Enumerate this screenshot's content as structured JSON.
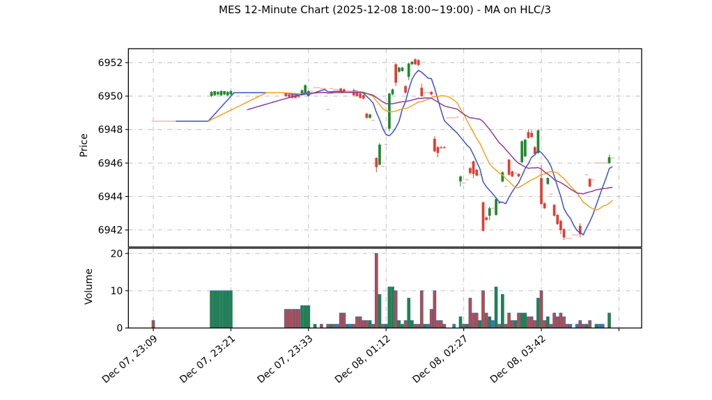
{
  "title": "MES 12-Minute Chart (2025-12-08 18:00~19:00) - MA on HLC/3",
  "price_panel": {
    "axis_label": "Price",
    "tick_labels": [
      6942,
      6944,
      6946,
      6948,
      6950,
      6952
    ],
    "ylim": [
      6941.0,
      6952.85
    ]
  },
  "volume_panel": {
    "axis_label": "Volume",
    "tick_labels": [
      0,
      10,
      20
    ],
    "ylim": [
      0,
      21.4
    ]
  },
  "x_axis": {
    "tick_labels": [
      "Dec 07, 23:09",
      "Dec 07, 23:21",
      "Dec 07, 23:33",
      "Dec 08, 01:12",
      "Dec 08, 02:27",
      "Dec 08, 03:42"
    ],
    "bars_per_gridline": 24,
    "n_gridlines": 7
  },
  "colors": {
    "up": "#1d8a2a",
    "down": "#e23d33",
    "flat": "#f6b2ae",
    "ma_fast": "#3b4fd0",
    "ma_mid": "#f9a11b",
    "ma_slow": "#913a92",
    "vol_up": "#1d8a2a",
    "vol_down": "#d64136",
    "vol_neutral": "#3f76b5",
    "vol_edge": "#2f6ca8",
    "grid": "#bbbbbb",
    "spine": "#000000",
    "background": "#ffffff"
  },
  "chart_data": {
    "type": "candlestick+volume",
    "title": "MES 12-Minute Chart (2025-12-08 18:00~19:00) - MA on HLC/3",
    "price_source": "MA on HLC/3",
    "moving_averages": [
      {
        "name": "MA-fast",
        "period": 8,
        "color": "#3b4fd0"
      },
      {
        "name": "MA-mid",
        "period": 18,
        "color": "#f9a11b"
      },
      {
        "name": "MA-slow",
        "period": 30,
        "color": "#913a92"
      }
    ],
    "ohlcv_format": [
      "open",
      "high",
      "low",
      "close",
      "volume"
    ],
    "ohlcv": [
      [
        6948.5,
        6948.5,
        6948.5,
        6948.5,
        2
      ],
      [
        6948.5,
        6948.5,
        6948.5,
        6948.5,
        0
      ],
      [
        6948.5,
        6948.5,
        6948.5,
        6948.5,
        0
      ],
      [
        6948.5,
        6948.5,
        6948.5,
        6948.5,
        0
      ],
      [
        6948.5,
        6948.5,
        6948.5,
        6948.5,
        0
      ],
      [
        6948.5,
        6948.5,
        6948.5,
        6948.5,
        0
      ],
      [
        6948.5,
        6948.5,
        6948.5,
        6948.5,
        0
      ],
      [
        6948.5,
        6948.5,
        6948.5,
        6948.5,
        0
      ],
      [
        6948.5,
        6948.5,
        6948.5,
        6948.5,
        0
      ],
      [
        6948.5,
        6948.5,
        6948.5,
        6948.5,
        0
      ],
      [
        6948.5,
        6948.5,
        6948.5,
        6948.5,
        0
      ],
      [
        6948.5,
        6948.5,
        6948.5,
        6948.5,
        0
      ],
      [
        6948.5,
        6948.5,
        6948.5,
        6948.5,
        0
      ],
      [
        6948.5,
        6948.5,
        6948.5,
        6948.5,
        0
      ],
      [
        6948.5,
        6948.5,
        6948.5,
        6948.5,
        0
      ],
      [
        6948.5,
        6948.5,
        6948.5,
        6948.5,
        0
      ],
      [
        6948.5,
        6948.5,
        6948.5,
        6948.5,
        0
      ],
      [
        6948.5,
        6948.5,
        6948.5,
        6948.5,
        0
      ],
      [
        6950.0,
        6950.3,
        6949.95,
        6950.25,
        10
      ],
      [
        6950.05,
        6950.3,
        6950.0,
        6950.3,
        10
      ],
      [
        6950.1,
        6950.3,
        6950.05,
        6950.25,
        10
      ],
      [
        6950.05,
        6950.35,
        6950.0,
        6950.3,
        10
      ],
      [
        6950.1,
        6950.3,
        6950.05,
        6950.3,
        10
      ],
      [
        6950.05,
        6950.3,
        6950.0,
        6950.25,
        10
      ],
      [
        6950.1,
        6950.35,
        6950.05,
        6950.3,
        10
      ],
      [
        6950.2,
        6950.2,
        6950.2,
        6950.2,
        0
      ],
      [
        6950.2,
        6950.2,
        6950.2,
        6950.2,
        0
      ],
      [
        6950.2,
        6950.2,
        6950.2,
        6950.2,
        0
      ],
      [
        6950.2,
        6950.2,
        6950.2,
        6950.2,
        0
      ],
      [
        6950.2,
        6950.2,
        6950.2,
        6950.2,
        0
      ],
      [
        6950.2,
        6950.2,
        6950.2,
        6950.2,
        0
      ],
      [
        6950.2,
        6950.2,
        6950.2,
        6950.2,
        0
      ],
      [
        6950.2,
        6950.2,
        6950.2,
        6950.2,
        0
      ],
      [
        6950.2,
        6950.2,
        6950.2,
        6950.2,
        0
      ],
      [
        6950.2,
        6950.2,
        6950.2,
        6950.2,
        0
      ],
      [
        6950.2,
        6950.2,
        6950.2,
        6950.2,
        0
      ],
      [
        6950.2,
        6950.2,
        6950.2,
        6950.2,
        0
      ],
      [
        6950.2,
        6950.2,
        6950.2,
        6950.2,
        0
      ],
      [
        6950.2,
        6950.2,
        6950.2,
        6950.2,
        0
      ],
      [
        6950.2,
        6950.2,
        6950.2,
        6950.2,
        0
      ],
      [
        6950.2,
        6950.2,
        6950.2,
        6950.2,
        0
      ],
      [
        6950.15,
        6950.2,
        6949.95,
        6950.0,
        5
      ],
      [
        6950.1,
        6950.15,
        6949.9,
        6949.95,
        5
      ],
      [
        6950.1,
        6950.15,
        6949.85,
        6949.9,
        5
      ],
      [
        6950.05,
        6950.1,
        6949.85,
        6949.9,
        5
      ],
      [
        6950.0,
        6950.1,
        6949.9,
        6949.95,
        5
      ],
      [
        6950.1,
        6950.4,
        6950.05,
        6950.35,
        6
      ],
      [
        6950.2,
        6950.7,
        6950.15,
        6950.65,
        6
      ],
      [
        6950.0,
        6950.35,
        6949.95,
        6950.3,
        6
      ],
      [
        6950.3,
        6950.3,
        6950.3,
        6950.3,
        0
      ],
      [
        6950.5,
        6950.5,
        6950.5,
        6950.5,
        1
      ],
      [
        6950.5,
        6950.5,
        6950.5,
        6950.5,
        0
      ],
      [
        6950.45,
        6950.45,
        6950.45,
        6950.45,
        1
      ],
      [
        6950.45,
        6950.45,
        6950.45,
        6950.45,
        0
      ],
      [
        6949.2,
        6949.2,
        6949.2,
        6949.2,
        1
      ],
      [
        6950.45,
        6950.45,
        6950.45,
        6950.45,
        1
      ],
      [
        6950.4,
        6950.4,
        6950.4,
        6950.4,
        1
      ],
      [
        6950.4,
        6950.4,
        6950.4,
        6950.4,
        1
      ],
      [
        6950.45,
        6950.5,
        6950.25,
        6950.3,
        4
      ],
      [
        6950.4,
        6950.45,
        6950.2,
        6950.25,
        4
      ],
      [
        6950.3,
        6950.3,
        6950.3,
        6950.3,
        1
      ],
      [
        6950.3,
        6950.3,
        6950.3,
        6950.3,
        1
      ],
      [
        6950.3,
        6950.45,
        6950.0,
        6950.05,
        1
      ],
      [
        6950.25,
        6950.35,
        6949.95,
        6950.0,
        3
      ],
      [
        6950.15,
        6950.2,
        6949.85,
        6949.9,
        3
      ],
      [
        6950.05,
        6950.1,
        6949.8,
        6949.85,
        2
      ],
      [
        6948.95,
        6949.0,
        6948.65,
        6948.7,
        2
      ],
      [
        6948.7,
        6948.95,
        6948.65,
        6948.9,
        2
      ],
      [
        6948.55,
        6948.55,
        6948.55,
        6948.55,
        1
      ],
      [
        6946.3,
        6946.35,
        6945.45,
        6945.75,
        20
      ],
      [
        6945.9,
        6947.2,
        6945.85,
        6947.1,
        9
      ],
      [
        6945.8,
        6945.8,
        6945.8,
        6945.8,
        1
      ],
      [
        6947.1,
        6947.1,
        6947.1,
        6947.1,
        1
      ],
      [
        6948.05,
        6950.2,
        6947.9,
        6950.15,
        11
      ],
      [
        6950.1,
        6950.45,
        6950.05,
        6950.4,
        11
      ],
      [
        6951.9,
        6951.95,
        6950.6,
        6950.8,
        10
      ],
      [
        6951.45,
        6951.75,
        6951.4,
        6951.7,
        2
      ],
      [
        6951.5,
        6951.75,
        6951.45,
        6951.7,
        1
      ],
      [
        6950.6,
        6950.65,
        6950.15,
        6950.2,
        2
      ],
      [
        6951.15,
        6952.0,
        6950.95,
        6951.95,
        8
      ],
      [
        6951.9,
        6952.1,
        6951.85,
        6952.05,
        2
      ],
      [
        6952.2,
        6952.25,
        6951.85,
        6951.9,
        1
      ],
      [
        6952.15,
        6952.2,
        6951.8,
        6951.85,
        1
      ],
      [
        6950.5,
        6950.75,
        6949.95,
        6950.0,
        10
      ],
      [
        6950.2,
        6950.2,
        6950.2,
        6950.2,
        1
      ],
      [
        6950.2,
        6950.2,
        6950.2,
        6950.2,
        1
      ],
      [
        6950.25,
        6950.3,
        6950.05,
        6950.1,
        5
      ],
      [
        6947.45,
        6947.6,
        6946.65,
        6946.7,
        10
      ],
      [
        6946.95,
        6947.0,
        6946.35,
        6946.6,
        2
      ],
      [
        6946.95,
        6947.0,
        6946.85,
        6946.9,
        2
      ],
      [
        6946.95,
        6947.0,
        6946.85,
        6946.9,
        1
      ],
      [
        6948.7,
        6948.7,
        6948.7,
        6948.7,
        0
      ],
      [
        6948.7,
        6948.7,
        6948.7,
        6948.7,
        0
      ],
      [
        6948.7,
        6948.7,
        6948.7,
        6948.7,
        1
      ],
      [
        6948.75,
        6948.75,
        6948.75,
        6948.75,
        0
      ],
      [
        6944.9,
        6945.25,
        6944.6,
        6945.2,
        3
      ],
      [
        6944.8,
        6944.8,
        6944.8,
        6944.8,
        1
      ],
      [
        6945.0,
        6945.0,
        6945.0,
        6945.0,
        1
      ],
      [
        6945.7,
        6945.75,
        6945.3,
        6945.4,
        8
      ],
      [
        6946.1,
        6946.15,
        6945.1,
        6945.35,
        4
      ],
      [
        6945.6,
        6945.65,
        6945.2,
        6945.25,
        4
      ],
      [
        6945.3,
        6945.3,
        6945.3,
        6945.3,
        2
      ],
      [
        6943.65,
        6943.7,
        6941.9,
        6941.95,
        10
      ],
      [
        6942.75,
        6942.8,
        6942.55,
        6942.6,
        4
      ],
      [
        6942.85,
        6943.4,
        6942.6,
        6943.3,
        3
      ],
      [
        6943.3,
        6943.3,
        6943.3,
        6943.3,
        2
      ],
      [
        6942.9,
        6943.9,
        6942.85,
        6943.85,
        11
      ],
      [
        6943.65,
        6943.7,
        6943.55,
        6943.6,
        1
      ],
      [
        6944.9,
        6945.5,
        6944.85,
        6945.45,
        9
      ],
      [
        6944.6,
        6944.6,
        6944.6,
        6944.6,
        1
      ],
      [
        6946.2,
        6946.25,
        6945.25,
        6945.3,
        4
      ],
      [
        6945.5,
        6945.55,
        6945.15,
        6945.2,
        2
      ],
      [
        6945.4,
        6945.4,
        6945.4,
        6945.4,
        2
      ],
      [
        6945.35,
        6945.4,
        6945.15,
        6945.2,
        4
      ],
      [
        6946.05,
        6947.35,
        6946.0,
        6947.3,
        4
      ],
      [
        6946.4,
        6947.45,
        6946.35,
        6947.4,
        4
      ],
      [
        6947.85,
        6948.0,
        6947.45,
        6947.5,
        3
      ],
      [
        6947.8,
        6947.95,
        6947.5,
        6947.55,
        3
      ],
      [
        6946.95,
        6947.0,
        6946.5,
        6946.55,
        2
      ],
      [
        6946.6,
        6948.0,
        6946.55,
        6947.95,
        8
      ],
      [
        6945.1,
        6945.9,
        6943.5,
        6943.55,
        10
      ],
      [
        6943.6,
        6943.65,
        6943.25,
        6943.3,
        2
      ],
      [
        6944.75,
        6945.15,
        6944.7,
        6945.1,
        3
      ],
      [
        6944.15,
        6944.15,
        6944.15,
        6944.15,
        1
      ],
      [
        6943.5,
        6943.55,
        6942.8,
        6942.85,
        4
      ],
      [
        6942.9,
        6942.95,
        6942.3,
        6942.35,
        3
      ],
      [
        6942.55,
        6942.6,
        6941.75,
        6942.0,
        4
      ],
      [
        6942.05,
        6942.1,
        6941.4,
        6941.55,
        3
      ],
      [
        6941.5,
        6941.5,
        6941.5,
        6941.5,
        1
      ],
      [
        6941.5,
        6941.5,
        6941.5,
        6941.5,
        1
      ],
      [
        6941.7,
        6941.7,
        6941.7,
        6941.7,
        0
      ],
      [
        6941.7,
        6941.7,
        6941.7,
        6941.7,
        1
      ],
      [
        6942.25,
        6942.4,
        6941.55,
        6941.75,
        2
      ],
      [
        6941.7,
        6941.7,
        6941.7,
        6941.7,
        1
      ],
      [
        6945.3,
        6945.3,
        6945.3,
        6945.3,
        1
      ],
      [
        6945.05,
        6945.1,
        6944.55,
        6944.6,
        2
      ],
      [
        6945.0,
        6945.0,
        6945.0,
        6945.0,
        0
      ],
      [
        6946.0,
        6946.0,
        6946.0,
        6946.0,
        1
      ],
      [
        6946.0,
        6946.0,
        6946.0,
        6946.0,
        1
      ],
      [
        6946.0,
        6946.0,
        6946.0,
        6946.0,
        1
      ],
      [
        6946.0,
        6946.0,
        6946.0,
        6946.0,
        0
      ],
      [
        6946.0,
        6946.5,
        6945.95,
        6946.35,
        4
      ],
      [
        6946.3,
        6946.3,
        6946.3,
        6946.3,
        0
      ]
    ]
  }
}
